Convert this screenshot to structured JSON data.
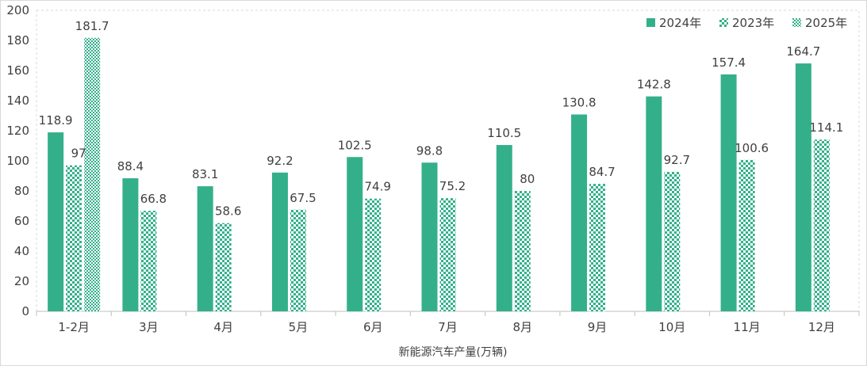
{
  "chart_data": {
    "type": "bar",
    "title": "",
    "xlabel": "新能源汽车产量(万辆)",
    "ylabel": "",
    "ylim": [
      0,
      200
    ],
    "yticks": [
      0,
      20,
      40,
      60,
      80,
      100,
      120,
      140,
      160,
      180,
      200
    ],
    "categories": [
      "1-2月",
      "3月",
      "4月",
      "5月",
      "6月",
      "7月",
      "8月",
      "9月",
      "10月",
      "11月",
      "12月"
    ],
    "series": [
      {
        "name": "2024年",
        "pattern": "solid",
        "color": "#33b08a",
        "values": [
          118.9,
          88.4,
          83.1,
          92.2,
          102.5,
          98.8,
          110.5,
          130.8,
          142.8,
          157.4,
          164.7
        ]
      },
      {
        "name": "2023年",
        "pattern": "checker",
        "color": "#33b08a",
        "values": [
          97,
          66.8,
          58.6,
          67.5,
          74.9,
          75.2,
          80,
          84.7,
          92.7,
          100.6,
          114.1
        ]
      },
      {
        "name": "2025年",
        "pattern": "dots",
        "color": "#33b08a",
        "values": [
          181.7,
          null,
          null,
          null,
          null,
          null,
          null,
          null,
          null,
          null,
          null
        ]
      }
    ],
    "legend_position": "top-right",
    "grid": "dashed-frame"
  }
}
